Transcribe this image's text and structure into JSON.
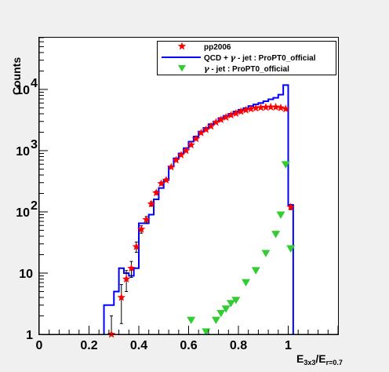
{
  "chart_data": {
    "type": "scatter",
    "title": "",
    "ylabel": "Counts",
    "xlabel": {
      "main": "E",
      "sub1": "3x3",
      "mid": "/E",
      "sub2": "r=0.7"
    },
    "xlim": [
      0,
      1.2
    ],
    "ylim": [
      1,
      70000
    ],
    "yscale": "log",
    "grid": false,
    "x_ticks": [
      {
        "value": 0,
        "label": "0"
      },
      {
        "value": 0.2,
        "label": "0.2"
      },
      {
        "value": 0.4,
        "label": "0.4"
      },
      {
        "value": 0.6,
        "label": "0.6"
      },
      {
        "value": 0.8,
        "label": "0.8"
      },
      {
        "value": 1.0,
        "label": "1"
      }
    ],
    "y_ticks": [
      {
        "value": 1,
        "label": "1",
        "exp": ""
      },
      {
        "value": 10,
        "label": "10",
        "exp": ""
      },
      {
        "value": 100,
        "label": "10",
        "exp": "2"
      },
      {
        "value": 1000,
        "label": "10",
        "exp": "3"
      },
      {
        "value": 10000,
        "label": "10",
        "exp": "4"
      }
    ],
    "legend": {
      "position": "top-right",
      "entries": [
        {
          "key": "pp2006",
          "text": "pp2006",
          "marker": "star",
          "color": "#ff0000"
        },
        {
          "key": "qcd",
          "text_before": "QCD + ",
          "symbol": "γ",
          "text_after": " - jet : ProPT0_official",
          "marker": "line",
          "color": "#0000ff"
        },
        {
          "key": "gamma",
          "text_before": "",
          "symbol": "γ",
          "text_after": " - jet : ProPT0_official",
          "marker": "triangle",
          "color": "#33cc33"
        }
      ]
    },
    "series": [
      {
        "key": "pp2006",
        "color": "#ff0000",
        "bin_width": 0.02,
        "x": [
          0.29,
          0.33,
          0.35,
          0.37,
          0.39,
          0.41,
          0.43,
          0.45,
          0.47,
          0.49,
          0.51,
          0.53,
          0.55,
          0.57,
          0.59,
          0.61,
          0.63,
          0.65,
          0.67,
          0.69,
          0.71,
          0.73,
          0.75,
          0.77,
          0.79,
          0.81,
          0.83,
          0.85,
          0.87,
          0.89,
          0.91,
          0.93,
          0.95,
          0.97,
          0.99,
          1.01
        ],
        "y": [
          1,
          4,
          8,
          12,
          27,
          52,
          75,
          135,
          205,
          290,
          330,
          540,
          700,
          850,
          1000,
          1240,
          1560,
          1950,
          2200,
          2500,
          2900,
          3200,
          3500,
          3800,
          4050,
          4350,
          4600,
          4800,
          4950,
          5050,
          5100,
          5150,
          5150,
          5000,
          4800,
          120
        ],
        "err": [
          1,
          2.5,
          3,
          3.5,
          5.2,
          7.2,
          8.7,
          11.6,
          14.3,
          17,
          18,
          23,
          26,
          29,
          32,
          35,
          39,
          44,
          47,
          50,
          54,
          57,
          59,
          62,
          64,
          66,
          68,
          69,
          70,
          71,
          71,
          72,
          72,
          71,
          69,
          11
        ]
      },
      {
        "key": "qcd",
        "color": "#0000ff",
        "type": "step",
        "bin_width": 0.02,
        "x": [
          0.27,
          0.29,
          0.31,
          0.33,
          0.35,
          0.37,
          0.39,
          0.41,
          0.43,
          0.45,
          0.47,
          0.49,
          0.51,
          0.53,
          0.55,
          0.57,
          0.59,
          0.61,
          0.63,
          0.65,
          0.67,
          0.69,
          0.71,
          0.73,
          0.75,
          0.77,
          0.79,
          0.81,
          0.83,
          0.85,
          0.87,
          0.89,
          0.91,
          0.93,
          0.95,
          0.97,
          0.99,
          1.01
        ],
        "y": [
          3,
          3,
          5,
          12,
          10,
          9,
          12,
          65,
          65,
          90,
          160,
          245,
          330,
          550,
          750,
          900,
          1100,
          1400,
          1700,
          2050,
          2350,
          2700,
          3000,
          3400,
          3700,
          4000,
          4350,
          4650,
          4950,
          5350,
          5700,
          6000,
          6400,
          6900,
          7300,
          8200,
          11800,
          130
        ]
      },
      {
        "key": "gamma",
        "color": "#33cc33",
        "x": [
          0.61,
          0.67,
          0.71,
          0.73,
          0.75,
          0.77,
          0.79,
          0.83,
          0.87,
          0.91,
          0.95,
          0.97,
          0.99,
          1.01
        ],
        "y": [
          1.7,
          1.1,
          1.7,
          2.2,
          2.6,
          3.2,
          3.6,
          7,
          11,
          21,
          43,
          89,
          590,
          25
        ]
      }
    ]
  }
}
